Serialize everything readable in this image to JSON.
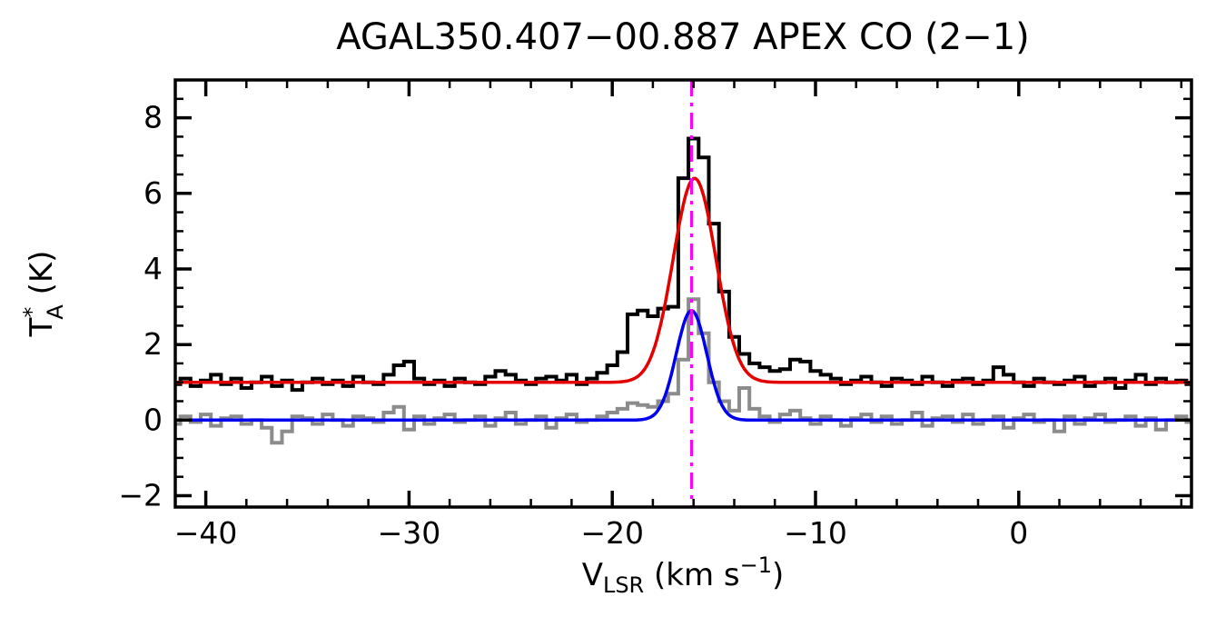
{
  "chart_data": {
    "type": "line",
    "title": "AGAL350.407−00.887  APEX CO (2−1)",
    "xlabel": "V_LSR (km s^−1)",
    "ylabel": "T_A^* (K)",
    "xlabel_parts": {
      "v": "V",
      "sub": "LSR",
      "mid": " (km s",
      "sup": "−1",
      "close": ")"
    },
    "ylabel_parts": {
      "t": "T",
      "sup": "*",
      "sub": "A",
      "rest": " (K)"
    },
    "xlim": [
      -41.5,
      8.5
    ],
    "ylim": [
      -2.3,
      9.0
    ],
    "grid": false,
    "legend": "none",
    "x_axis": {
      "major_values": [
        -40,
        -30,
        -20,
        -10,
        0
      ],
      "major_labels": [
        "−40",
        "−30",
        "−20",
        "−10",
        "0"
      ],
      "minor_step": 2
    },
    "y_axis": {
      "major_values": [
        -2,
        0,
        2,
        4,
        6,
        8
      ],
      "major_labels": [
        "−2",
        "0",
        "2",
        "4",
        "6",
        "8"
      ],
      "minor_step": 0.5
    },
    "x_start": -42,
    "x_step": 0.5,
    "series": [
      {
        "name": "secondary-spectrum-histogram",
        "color": "#8c8c8c",
        "width": 4,
        "style": "histogram",
        "baseline_level": 0,
        "values": [
          0.05,
          -0.1,
          0.1,
          -0.05,
          0.15,
          -0.15,
          0.05,
          0.1,
          -0.1,
          0.0,
          -0.2,
          -0.6,
          -0.3,
          0.1,
          0.05,
          -0.1,
          0.15,
          0.0,
          -0.15,
          0.1,
          0.05,
          -0.05,
          0.2,
          0.35,
          -0.25,
          0.1,
          -0.1,
          0.05,
          0.15,
          -0.05,
          0.0,
          0.1,
          -0.15,
          0.05,
          0.2,
          -0.1,
          0.0,
          0.1,
          -0.2,
          0.05,
          0.15,
          -0.05,
          0.0,
          0.1,
          0.2,
          0.3,
          0.45,
          0.4,
          0.35,
          0.5,
          0.7,
          1.6,
          3.2,
          2.3,
          1.0,
          0.5,
          0.25,
          0.85,
          0.3,
          0.1,
          -0.05,
          0.15,
          0.25,
          0.05,
          -0.1,
          0.1,
          0.0,
          -0.15,
          0.05,
          0.15,
          -0.05,
          0.1,
          -0.1,
          0.0,
          0.2,
          -0.15,
          0.05,
          0.1,
          -0.05,
          0.15,
          -0.1,
          0.0,
          0.1,
          -0.2,
          0.05,
          0.15,
          -0.05,
          0.0,
          -0.3,
          0.1,
          -0.1,
          0.05,
          0.15,
          -0.05,
          0.0,
          0.1,
          -0.15,
          0.05,
          -0.25,
          0.0,
          0.1,
          -0.05
        ]
      },
      {
        "name": "main-spectrum-histogram",
        "color": "#000000",
        "width": 4,
        "style": "histogram",
        "baseline_level": 1,
        "values": [
          1.0,
          0.95,
          1.1,
          0.9,
          1.05,
          1.2,
          0.95,
          1.1,
          0.85,
          1.0,
          1.15,
          0.9,
          1.05,
          0.8,
          1.0,
          1.1,
          0.95,
          1.05,
          0.9,
          1.15,
          1.0,
          0.95,
          1.2,
          1.45,
          1.55,
          1.1,
          0.95,
          1.05,
          0.9,
          1.1,
          1.0,
          0.95,
          1.15,
          1.3,
          1.2,
          1.05,
          0.95,
          1.1,
          1.15,
          1.05,
          1.2,
          0.95,
          1.1,
          1.25,
          1.45,
          1.8,
          2.8,
          2.9,
          2.75,
          2.95,
          3.0,
          6.4,
          7.45,
          6.95,
          5.2,
          3.4,
          2.2,
          1.75,
          1.5,
          1.4,
          1.3,
          1.35,
          1.6,
          1.55,
          1.3,
          1.2,
          1.1,
          0.95,
          1.05,
          1.15,
          1.0,
          0.9,
          1.1,
          1.05,
          0.95,
          1.15,
          1.0,
          0.9,
          1.05,
          1.1,
          0.95,
          1.05,
          1.4,
          1.2,
          1.0,
          0.9,
          1.1,
          1.0,
          0.95,
          1.05,
          1.15,
          0.9,
          1.0,
          1.1,
          0.85,
          1.05,
          1.2,
          0.95,
          1.1,
          1.0,
          1.05,
          0.95
        ]
      }
    ],
    "fits": [
      {
        "name": "gaussian-fit-secondary",
        "color": "#0000ee",
        "width": 3.5,
        "baseline": 0.0,
        "amplitude": 2.9,
        "center": -16.1,
        "sigma": 0.75
      },
      {
        "name": "gaussian-fit-main",
        "color": "#e50000",
        "width": 3.5,
        "baseline": 1.0,
        "amplitude": 5.4,
        "center": -15.95,
        "sigma": 1.05
      }
    ],
    "vline": {
      "name": "vlsr-marker-line",
      "x": -16.1,
      "color": "#ff00ff",
      "style": "dash-dot",
      "width": 3
    }
  }
}
